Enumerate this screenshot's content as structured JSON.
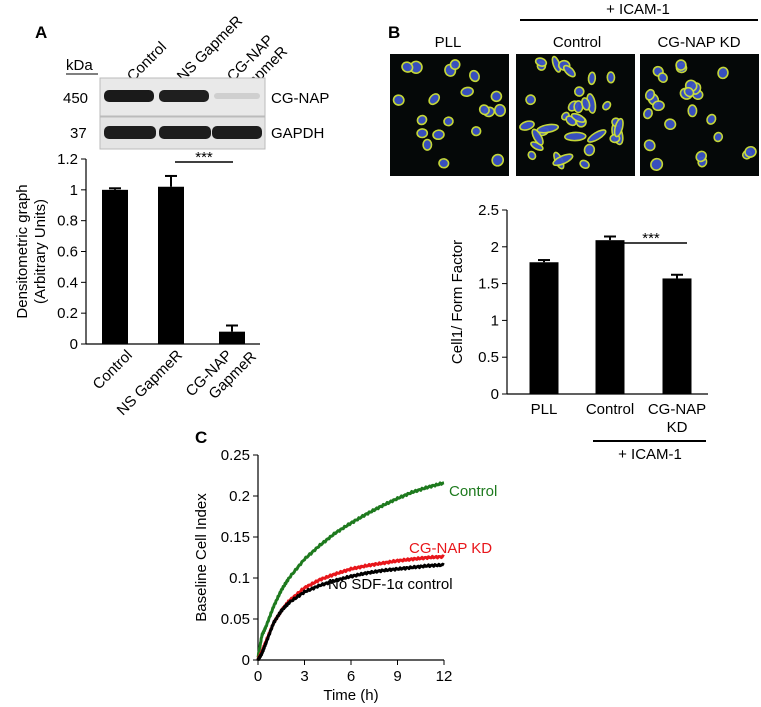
{
  "panels": {
    "A": {
      "letter": "A",
      "blot": {
        "kda_header": "kDa",
        "lane_labels": [
          "Control",
          "NS GapmeR",
          "CG-NAP GapmeR"
        ],
        "rows": [
          {
            "marker": "450",
            "protein": "CG-NAP"
          },
          {
            "marker": "37",
            "protein": "GAPDH"
          }
        ]
      },
      "significance": "***"
    },
    "B": {
      "letter": "B",
      "micro": {
        "header_group": "+ ICAM-1",
        "labels": [
          "PLL",
          "Control",
          "CG-NAP KD"
        ]
      },
      "significance": "***",
      "group_label": "+ ICAM-1"
    },
    "C": {
      "letter": "C",
      "line_labels": [
        "Control",
        "CG-NAP KD",
        "No SDF-1α control"
      ]
    }
  },
  "colors": {
    "bar": "#000000",
    "control_line": "#1e7a1e",
    "kd_line": "#e8161b",
    "nosdf_line": "#000000",
    "cell_outline": "#cfe23a",
    "cell_core": "#3b53c8",
    "micro_bg": "#050808"
  },
  "chart_data": [
    {
      "type": "bar",
      "panel": "A",
      "categories": [
        "Control",
        "NS GapmeR",
        "CG-NAP GapmeR"
      ],
      "values": [
        1.0,
        1.02,
        0.08
      ],
      "errors": [
        0.01,
        0.07,
        0.04
      ],
      "ylabel": "Densitometric graph (Arbitrary Units)",
      "xlabel": "",
      "ylim": [
        0,
        1.2
      ],
      "yticks": [
        "0",
        "0.2",
        "0.4",
        "0.6",
        "0.8",
        "1",
        "1.2"
      ],
      "ytick_values": [
        0,
        0.2,
        0.4,
        0.6,
        0.8,
        1.0,
        1.2
      ]
    },
    {
      "type": "bar",
      "panel": "B",
      "categories": [
        "PLL",
        "Control",
        "CG-NAP KD"
      ],
      "values": [
        1.79,
        2.09,
        1.57
      ],
      "errors": [
        0.03,
        0.05,
        0.05
      ],
      "ylabel": "Cell1/ Form Factor",
      "xlabel": "",
      "ylim": [
        0,
        2.5
      ],
      "yticks": [
        "0",
        "0.5",
        "1",
        "1.5",
        "2",
        "2.5"
      ],
      "ytick_values": [
        0,
        0.5,
        1.0,
        1.5,
        2.0,
        2.5
      ]
    },
    {
      "type": "line",
      "panel": "C",
      "xlabel": "Time (h)",
      "ylabel": "Baseline Cell Index",
      "xlim": [
        0,
        12
      ],
      "ylim": [
        0,
        0.25
      ],
      "xticks": [
        "0",
        "3",
        "6",
        "9",
        "12"
      ],
      "xtick_values": [
        0,
        3,
        6,
        9,
        12
      ],
      "yticks": [
        "0",
        "0.05",
        "0.1",
        "0.15",
        "0.2",
        "0.25"
      ],
      "ytick_values": [
        0,
        0.05,
        0.1,
        0.15,
        0.2,
        0.25
      ],
      "series": [
        {
          "name": "Control",
          "x": [
            0,
            0.25,
            0.5,
            1,
            1.5,
            2,
            3,
            4,
            5,
            6,
            7,
            8,
            9,
            10,
            11,
            12
          ],
          "y": [
            0.003,
            0.03,
            0.04,
            0.065,
            0.085,
            0.1,
            0.123,
            0.14,
            0.155,
            0.167,
            0.178,
            0.188,
            0.197,
            0.205,
            0.211,
            0.216
          ]
        },
        {
          "name": "CG-NAP KD",
          "x": [
            0,
            0.25,
            0.5,
            1,
            1.5,
            2,
            3,
            4,
            5,
            6,
            7,
            8,
            9,
            10,
            11,
            12
          ],
          "y": [
            0.001,
            0.01,
            0.022,
            0.045,
            0.06,
            0.072,
            0.088,
            0.098,
            0.105,
            0.111,
            0.115,
            0.118,
            0.121,
            0.123,
            0.125,
            0.126
          ]
        },
        {
          "name": "No SDF-1α control",
          "x": [
            0,
            0.25,
            0.5,
            1,
            1.5,
            2,
            3,
            4,
            5,
            6,
            7,
            8,
            9,
            10,
            11,
            12
          ],
          "y": [
            0.0,
            0.008,
            0.02,
            0.045,
            0.06,
            0.07,
            0.083,
            0.091,
            0.097,
            0.102,
            0.106,
            0.109,
            0.111,
            0.113,
            0.115,
            0.116
          ]
        }
      ]
    }
  ]
}
